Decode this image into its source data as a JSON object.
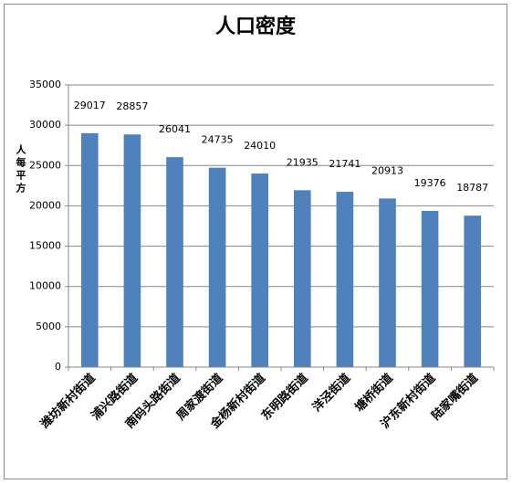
{
  "chart_data": {
    "type": "bar",
    "title": "人口密度",
    "y_label": "人每平方",
    "categories": [
      "潍坊新村街道",
      "浦兴路街道",
      "南码头路街道",
      "周家渡街道",
      "金杨新村街道",
      "东明路街道",
      "洋泾街道",
      "塘桥街道",
      "沪东新村街道",
      "陆家嘴街道"
    ],
    "values": [
      29017,
      28857,
      26041,
      24735,
      24010,
      21935,
      21741,
      20913,
      19376,
      18787
    ],
    "color": "#4f81bd",
    "ylim": [
      0,
      35000
    ],
    "yticks": [
      0,
      5000,
      10000,
      15000,
      20000,
      25000,
      30000,
      35000
    ],
    "grid": true
  }
}
